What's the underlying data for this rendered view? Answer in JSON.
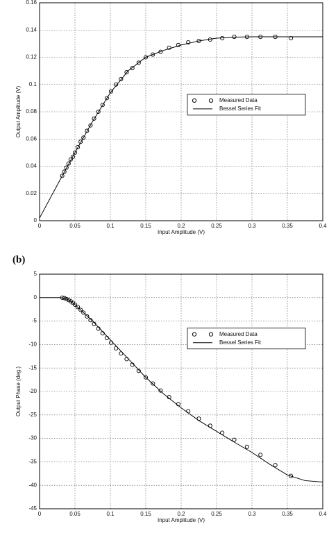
{
  "panel_label": "(b)",
  "chart_data": [
    {
      "type": "line",
      "xlabel": "Input Amplitude (V)",
      "ylabel": "Output Amplitude (V)",
      "xlim": [
        0,
        0.4
      ],
      "xticks": [
        0,
        0.05,
        0.1,
        0.15,
        0.2,
        0.25,
        0.3,
        0.35,
        0.4
      ],
      "ylim": [
        0,
        0.16
      ],
      "yticks": [
        0,
        0.02,
        0.04,
        0.06,
        0.08,
        0.1,
        0.12,
        0.14,
        0.16
      ],
      "grid": true,
      "legend_position": "right",
      "series": [
        {
          "name": "Measured Data",
          "color": "#000000",
          "mode": "markers",
          "x": [
            0.032,
            0.035,
            0.038,
            0.041,
            0.044,
            0.047,
            0.05,
            0.054,
            0.058,
            0.062,
            0.067,
            0.072,
            0.077,
            0.083,
            0.089,
            0.095,
            0.101,
            0.108,
            0.115,
            0.123,
            0.131,
            0.14,
            0.15,
            0.16,
            0.171,
            0.183,
            0.196,
            0.21,
            0.225,
            0.241,
            0.258,
            0.275,
            0.293,
            0.312,
            0.333,
            0.355
          ],
          "values": [
            0.033,
            0.036,
            0.039,
            0.042,
            0.045,
            0.047,
            0.05,
            0.054,
            0.058,
            0.061,
            0.066,
            0.07,
            0.075,
            0.08,
            0.085,
            0.09,
            0.095,
            0.1,
            0.104,
            0.109,
            0.112,
            0.116,
            0.12,
            0.122,
            0.124,
            0.127,
            0.129,
            0.131,
            0.132,
            0.133,
            0.134,
            0.135,
            0.135,
            0.135,
            0.135,
            0.134
          ]
        },
        {
          "name": "Bessel Series Fit",
          "color": "#000000",
          "mode": "line",
          "x": [
            0,
            0.03,
            0.05,
            0.075,
            0.1,
            0.125,
            0.15,
            0.175,
            0.2,
            0.225,
            0.25,
            0.275,
            0.3,
            0.35,
            0.4
          ],
          "values": [
            0.002,
            0.031,
            0.05,
            0.073,
            0.094,
            0.11,
            0.12,
            0.125,
            0.129,
            0.132,
            0.134,
            0.1348,
            0.135,
            0.135,
            0.135
          ]
        }
      ]
    },
    {
      "type": "line",
      "xlabel": "Input Amplitude (V)",
      "ylabel": "Output Phase (deg.)",
      "xlim": [
        0,
        0.4
      ],
      "xticks": [
        0,
        0.05,
        0.1,
        0.15,
        0.2,
        0.25,
        0.3,
        0.35,
        0.4
      ],
      "ylim": [
        -45,
        5
      ],
      "yticks": [
        5,
        0,
        -5,
        -10,
        -15,
        -20,
        -25,
        -30,
        -35,
        -40,
        -45
      ],
      "grid": true,
      "legend_position": "right",
      "series": [
        {
          "name": "Measured Data",
          "color": "#000000",
          "mode": "markers",
          "x": [
            0.032,
            0.035,
            0.038,
            0.041,
            0.044,
            0.047,
            0.05,
            0.054,
            0.058,
            0.062,
            0.067,
            0.072,
            0.077,
            0.083,
            0.089,
            0.095,
            0.101,
            0.108,
            0.115,
            0.123,
            0.131,
            0.14,
            0.15,
            0.16,
            0.171,
            0.183,
            0.196,
            0.21,
            0.225,
            0.241,
            0.258,
            0.275,
            0.293,
            0.312,
            0.333,
            0.355
          ],
          "values": [
            0,
            -0.1,
            -0.3,
            -0.5,
            -0.8,
            -1.1,
            -1.5,
            -2,
            -2.6,
            -3.2,
            -4,
            -4.8,
            -5.6,
            -6.6,
            -7.6,
            -8.6,
            -9.6,
            -10.8,
            -11.9,
            -13.1,
            -14.3,
            -15.6,
            -17,
            -18.3,
            -19.8,
            -21.2,
            -22.7,
            -24.2,
            -25.8,
            -27.3,
            -28.8,
            -30.3,
            -31.8,
            -33.5,
            -35.7,
            -38
          ]
        },
        {
          "name": "Bessel Series Fit",
          "color": "#000000",
          "mode": "line",
          "x": [
            0,
            0.03,
            0.04,
            0.05,
            0.075,
            0.1,
            0.125,
            0.15,
            0.175,
            0.2,
            0.225,
            0.25,
            0.275,
            0.3,
            0.325,
            0.35,
            0.375,
            0.4
          ],
          "values": [
            0,
            0,
            -0.4,
            -1.5,
            -5,
            -9,
            -13,
            -17,
            -20.5,
            -23.5,
            -26.2,
            -28.5,
            -30.8,
            -33,
            -35.5,
            -37.8,
            -39,
            -39.3
          ]
        }
      ]
    }
  ]
}
